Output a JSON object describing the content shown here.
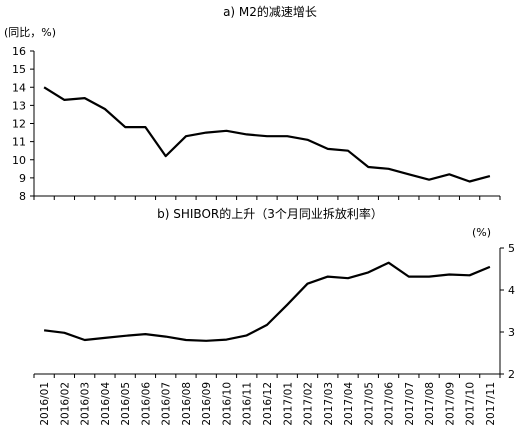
{
  "chart_data": [
    {
      "type": "line",
      "title": "a) M2的减速增长",
      "unit_label": "(同比，%)",
      "ylim": [
        8,
        16
      ],
      "yticks": [
        8,
        9,
        10,
        11,
        12,
        13,
        14,
        15,
        16
      ],
      "categories": [
        "2016/01",
        "2016/02",
        "2016/03",
        "2016/04",
        "2016/05",
        "2016/06",
        "2016/07",
        "2016/08",
        "2016/09",
        "2016/10",
        "2016/11",
        "2016/12",
        "2017/01",
        "2017/02",
        "2017/03",
        "2017/04",
        "2017/05",
        "2017/06",
        "2017/07",
        "2017/08",
        "2017/09",
        "2017/10",
        "2017/11"
      ],
      "series": [
        {
          "values": [
            14.0,
            13.3,
            13.4,
            12.8,
            11.8,
            11.8,
            10.2,
            11.3,
            11.5,
            11.6,
            11.4,
            11.3,
            11.3,
            11.1,
            10.6,
            10.5,
            9.6,
            9.5,
            9.2,
            8.9,
            9.2,
            8.8,
            9.1
          ]
        }
      ],
      "grid": false
    },
    {
      "type": "line",
      "title": "b) SHIBOR的上升（3个月同业拆放利率）",
      "unit_label": "(%)",
      "ylim": [
        2,
        5
      ],
      "yticks": [
        2,
        3,
        4,
        5
      ],
      "y_axis_side": "right",
      "categories": [
        "2016/01",
        "2016/02",
        "2016/03",
        "2016/04",
        "2016/05",
        "2016/06",
        "2016/07",
        "2016/08",
        "2016/09",
        "2016/10",
        "2016/11",
        "2016/12",
        "2017/01",
        "2017/02",
        "2017/03",
        "2017/04",
        "2017/05",
        "2017/06",
        "2017/07",
        "2017/08",
        "2017/09",
        "2017/10",
        "2017/11"
      ],
      "series": [
        {
          "values": [
            3.04,
            2.98,
            2.81,
            2.86,
            2.91,
            2.95,
            2.89,
            2.81,
            2.79,
            2.82,
            2.92,
            3.17,
            3.65,
            4.15,
            4.32,
            4.28,
            4.42,
            4.65,
            4.32,
            4.32,
            4.37,
            4.35,
            4.55
          ]
        }
      ],
      "grid": false
    }
  ]
}
